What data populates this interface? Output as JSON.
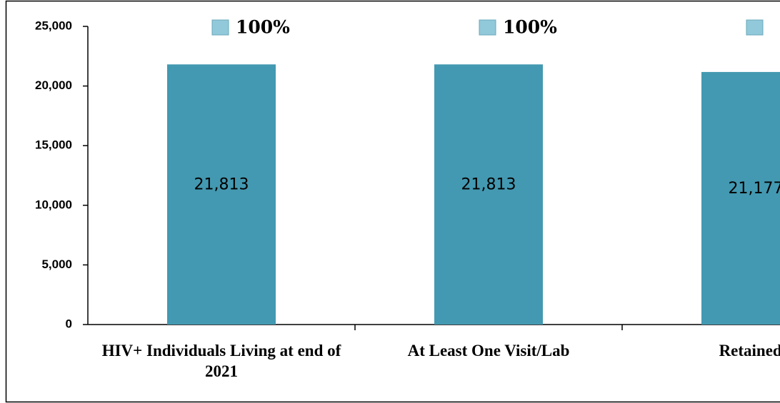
{
  "chart_data": {
    "type": "bar",
    "categories": [
      "HIV+ Individuals Living at end of 2021",
      "At Least One Visit/Lab",
      "Retained I"
    ],
    "values": [
      21813,
      21813,
      21177
    ],
    "value_labels": [
      "21,813",
      "21,813",
      "21,177"
    ],
    "percent_values": [
      100,
      100,
      null
    ],
    "percent_labels": [
      "100%",
      "100%",
      null
    ],
    "color": "#4399b1",
    "percent_box_color": "#92c9da",
    "ylim": [
      0,
      25000
    ],
    "yticks": [
      0,
      {
        "value": 5000,
        "label": "5,000"
      },
      {
        "value": 10000,
        "label": "10,000"
      },
      {
        "value": 15000,
        "label": "15,000"
      },
      {
        "value": 20000,
        "label": "20,000"
      },
      {
        "value": 25000,
        "label": "25,000"
      }
    ],
    "grid": false
  }
}
